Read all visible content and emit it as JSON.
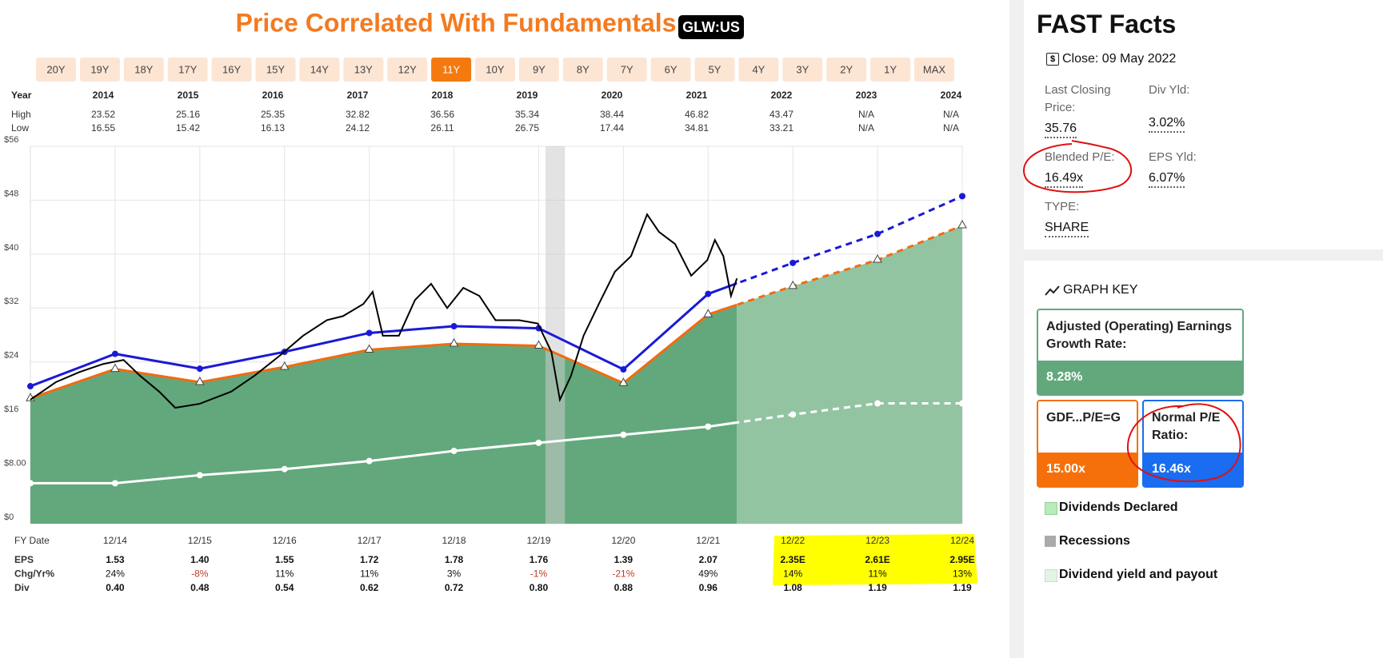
{
  "header": {
    "title": "Price Correlated With Fundamentals",
    "ticker": "GLW:US"
  },
  "range_buttons": [
    "20Y",
    "19Y",
    "18Y",
    "17Y",
    "16Y",
    "15Y",
    "14Y",
    "13Y",
    "12Y",
    "11Y",
    "10Y",
    "9Y",
    "8Y",
    "7Y",
    "6Y",
    "5Y",
    "4Y",
    "3Y",
    "2Y",
    "1Y",
    "MAX"
  ],
  "active_range": "11Y",
  "year_table": {
    "headers": [
      "Year",
      "2014",
      "2015",
      "2016",
      "2017",
      "2018",
      "2019",
      "2020",
      "2021",
      "2022",
      "2023",
      "2024"
    ],
    "rows": [
      [
        "High",
        "23.52",
        "25.16",
        "25.35",
        "32.82",
        "36.56",
        "35.34",
        "38.44",
        "46.82",
        "43.47",
        "N/A",
        "N/A"
      ],
      [
        "Low",
        "16.55",
        "15.42",
        "16.13",
        "24.12",
        "26.11",
        "26.75",
        "17.44",
        "34.81",
        "33.21",
        "N/A",
        "N/A"
      ]
    ]
  },
  "chart_data": {
    "type": "line",
    "x": [
      2013,
      2014,
      2015,
      2016,
      2017,
      2018,
      2019,
      2020,
      2021,
      2022,
      2023,
      2024
    ],
    "xlim": [
      2013,
      2024
    ],
    "xticks": [
      {
        "value": 2014,
        "label": "12/14"
      },
      {
        "value": 2015,
        "label": "12/15"
      },
      {
        "value": 2016,
        "label": "12/16"
      },
      {
        "value": 2017,
        "label": "12/17"
      },
      {
        "value": 2018,
        "label": "12/18"
      },
      {
        "value": 2019,
        "label": "12/19"
      },
      {
        "value": 2020,
        "label": "12/20"
      },
      {
        "value": 2021,
        "label": "12/21"
      },
      {
        "value": 2022,
        "label": "12/22"
      },
      {
        "value": 2023,
        "label": "12/23"
      },
      {
        "value": 2024,
        "label": "12/24"
      }
    ],
    "ylim": [
      0,
      56
    ],
    "yticks": [
      {
        "value": 0,
        "label": "$0"
      },
      {
        "value": 8,
        "label": "$8.00"
      },
      {
        "value": 16,
        "label": "$16"
      },
      {
        "value": 24,
        "label": "$24"
      },
      {
        "value": 32,
        "label": "$32"
      },
      {
        "value": 40,
        "label": "$40"
      },
      {
        "value": 48,
        "label": "$48"
      },
      {
        "value": 56,
        "label": "$56"
      }
    ],
    "grid": true,
    "area_color": "#62a87c",
    "projection_area_color": "#93c4a2",
    "recession_color": "#cccccc",
    "recessions": [
      {
        "start": 2019.08,
        "end": 2019.31
      }
    ],
    "series": [
      {
        "color": "#f26b0f",
        "marker": "triangle",
        "area": true,
        "values": [
          18.6,
          22.95,
          21,
          23.25,
          25.8,
          26.7,
          26.4,
          20.85,
          31.05,
          35.25,
          39.15,
          44.25
        ]
      },
      {
        "color": "#1a1ad6",
        "marker": "circle",
        "values": [
          20.4,
          25.2,
          23.0,
          25.5,
          28.3,
          29.3,
          29.0,
          22.9,
          34.1,
          38.7,
          43.0,
          48.6
        ]
      },
      {
        "color": "#ffffff",
        "marker": "circle",
        "values": [
          6,
          6,
          7.2,
          8.1,
          9.3,
          10.8,
          12,
          13.2,
          14.4,
          16.2,
          17.85,
          17.85
        ]
      },
      {
        "color": "#000000",
        "actual": true,
        "x": [
          2013.0,
          2013.3,
          2013.58,
          2013.86,
          2014.1,
          2014.29,
          2014.52,
          2014.71,
          2015.0,
          2015.37,
          2015.65,
          2015.94,
          2016.22,
          2016.5,
          2016.69,
          2016.93,
          2017.04,
          2017.16,
          2017.35,
          2017.54,
          2017.73,
          2017.92,
          2018.11,
          2018.3,
          2018.49,
          2018.77,
          2018.99,
          2019.15,
          2019.25,
          2019.38,
          2019.53,
          2019.71,
          2019.9,
          2020.09,
          2020.28,
          2020.42,
          2020.61,
          2020.8,
          2020.99,
          2021.08,
          2021.18,
          2021.27,
          2021.34
        ],
        "values": [
          18.4,
          21,
          22.5,
          23.7,
          24.3,
          22,
          19.6,
          17.2,
          17.8,
          19.6,
          22,
          24.9,
          27.9,
          30.2,
          30.8,
          32.6,
          34.4,
          27.9,
          27.9,
          33.2,
          35.6,
          32,
          35,
          33.8,
          30.2,
          30.2,
          29.7,
          25.5,
          18.4,
          21.9,
          27.9,
          32.6,
          37.4,
          39.7,
          45.9,
          43.3,
          41.5,
          36.8,
          39.1,
          42.1,
          39.7,
          33.8,
          36.4
        ]
      }
    ]
  },
  "bottom_table": {
    "title": "FY Date",
    "rows": [
      [
        "EPS",
        "1.53",
        "1.40",
        "1.55",
        "1.72",
        "1.78",
        "1.76",
        "1.39",
        "2.07",
        "2.35E",
        "2.61E",
        "2.95E"
      ],
      [
        "Chg/Yr%",
        "24%",
        "-8%",
        "11%",
        "11%",
        "3%",
        "-1%",
        "-21%",
        "49%",
        "14%",
        "11%",
        "13%"
      ],
      [
        "Div",
        "0.40",
        "0.48",
        "0.54",
        "0.62",
        "0.72",
        "0.80",
        "0.88",
        "0.96",
        "1.08",
        "1.19",
        "1.19"
      ]
    ]
  },
  "fast_facts": {
    "title": "FAST Facts",
    "close": "Close: 09 May 2022",
    "items": [
      {
        "label": "Last Closing Price:",
        "value": "35.76"
      },
      {
        "label": "Div Yld:",
        "value": "3.02%"
      },
      {
        "label": "Blended P/E:",
        "value": "16.49x"
      },
      {
        "label": "EPS Yld:",
        "value": "6.07%"
      },
      {
        "label": "TYPE:",
        "value": "SHARE"
      }
    ]
  },
  "graph_key": {
    "title": "GRAPH KEY",
    "boxes": [
      {
        "label": "Adjusted (Operating) Earnings Growth Rate:",
        "value": "8.28%"
      },
      {
        "label": "GDF...P/E=G",
        "value": "15.00x"
      },
      {
        "label": "Normal P/E Ratio:",
        "value": "16.46x"
      }
    ],
    "legend": [
      "Dividends Declared",
      "Recessions",
      "Dividend yield and payout"
    ]
  }
}
